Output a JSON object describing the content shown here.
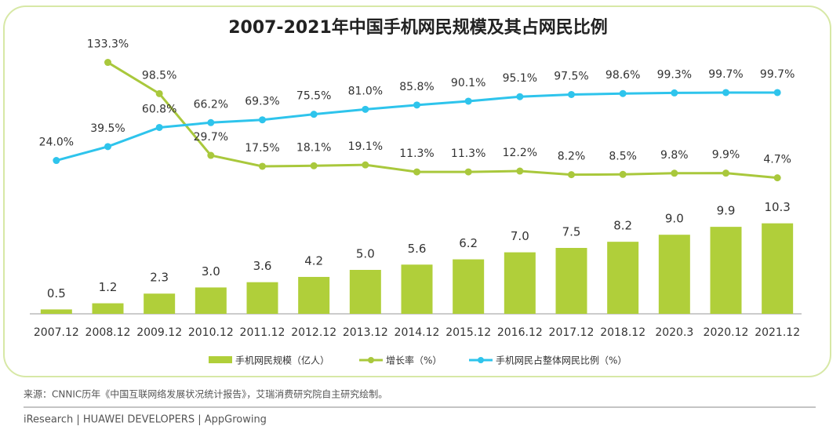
{
  "chart_data": {
    "type": "bar",
    "title": "2007-2021年中国手机网民规模及其占网民比例",
    "categories": [
      "2007.12",
      "2008.12",
      "2009.12",
      "2010.12",
      "2011.12",
      "2012.12",
      "2013.12",
      "2014.12",
      "2015.12",
      "2016.12",
      "2017.12",
      "2018.12",
      "2020.3",
      "2020.12",
      "2021.12"
    ],
    "series": [
      {
        "name": "手机网民规模（亿人）",
        "type": "bar",
        "color": "#b0cf3a",
        "values": [
          0.5,
          1.2,
          2.3,
          3.0,
          3.6,
          4.2,
          5.0,
          5.6,
          6.2,
          7.0,
          7.5,
          8.2,
          9.0,
          9.9,
          10.3
        ],
        "value_labels": [
          "0.5",
          "1.2",
          "2.3",
          "3.0",
          "3.6",
          "4.2",
          "5.0",
          "5.6",
          "6.2",
          "7.0",
          "7.5",
          "8.2",
          "9.0",
          "9.9",
          "10.3"
        ]
      },
      {
        "name": "增长率（%）",
        "type": "line",
        "axis": "y2",
        "color": "#a9c83c",
        "values": [
          null,
          133.3,
          98.5,
          29.7,
          17.5,
          18.1,
          19.1,
          11.3,
          11.3,
          12.2,
          8.2,
          8.5,
          9.8,
          9.9,
          4.7
        ],
        "value_labels": [
          null,
          "133.3%",
          "98.5%",
          "29.7%",
          "17.5%",
          "18.1%",
          "19.1%",
          "11.3%",
          "11.3%",
          "12.2%",
          "8.2%",
          "8.5%",
          "9.8%",
          "9.9%",
          "4.7%"
        ]
      },
      {
        "name": "手机网民占整体网民比例（%）",
        "type": "line",
        "axis": "y2",
        "color": "#2ec4ec",
        "values": [
          24.0,
          39.5,
          60.8,
          66.2,
          69.3,
          75.5,
          81.0,
          85.8,
          90.1,
          95.1,
          97.5,
          98.6,
          99.3,
          99.7,
          99.7
        ],
        "value_labels": [
          "24.0%",
          "39.5%",
          "60.8%",
          "66.2%",
          "69.3%",
          "75.5%",
          "81.0%",
          "85.8%",
          "90.1%",
          "95.1%",
          "97.5%",
          "98.6%",
          "99.3%",
          "99.7%",
          "99.7%"
        ]
      }
    ],
    "ylim": [
      0,
      15
    ],
    "y2lim": [
      0,
      160
    ],
    "source": "来源：CNNIC历年《中国互联网络发展状况统计报告》，艾瑞消费研究院自主研究绘制。",
    "footer": "iResearch | HUAWEI DEVELOPERS | AppGrowing"
  }
}
